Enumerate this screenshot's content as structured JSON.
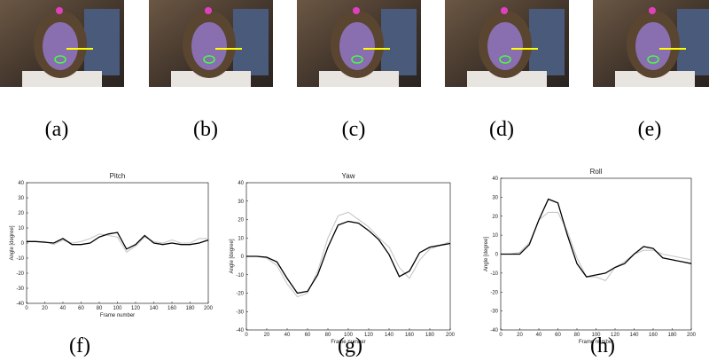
{
  "photo_labels": [
    "(a)",
    "(b)",
    "(c)",
    "(d)",
    "(e)"
  ],
  "chart_labels": [
    "(f)",
    "(g)",
    "(h)"
  ],
  "chart_data": [
    {
      "type": "line",
      "title": "Pitch",
      "xlabel": "Frame number",
      "ylabel": "Angle [degree]",
      "xlim": [
        0,
        200
      ],
      "ylim": [
        -40,
        40
      ],
      "xticks": [
        0,
        20,
        40,
        60,
        80,
        100,
        120,
        140,
        160,
        180,
        200
      ],
      "yticks": [
        -40,
        -30,
        -20,
        -10,
        0,
        10,
        20,
        30,
        40
      ],
      "x": [
        0,
        10,
        20,
        30,
        40,
        50,
        60,
        70,
        80,
        90,
        100,
        110,
        120,
        130,
        140,
        150,
        160,
        170,
        180,
        190,
        200
      ],
      "series": [
        {
          "color": "#c8c8c8",
          "values": [
            1,
            1,
            1,
            -1,
            2,
            0,
            1,
            3,
            6,
            5,
            4,
            -6,
            -2,
            4,
            1,
            0,
            2,
            0,
            0,
            3,
            3
          ]
        },
        {
          "color": "#000000",
          "values": [
            1,
            1,
            0.5,
            0,
            3,
            -1,
            -1,
            0,
            4,
            6,
            7,
            -4,
            -1,
            5,
            0,
            -1,
            0,
            -1,
            -1,
            0,
            2
          ]
        }
      ]
    },
    {
      "type": "line",
      "title": "Yaw",
      "xlabel": "Frame number",
      "ylabel": "Angle [degree]",
      "xlim": [
        0,
        200
      ],
      "ylim": [
        -40,
        40
      ],
      "xticks": [
        0,
        20,
        40,
        60,
        80,
        100,
        120,
        140,
        160,
        180,
        200
      ],
      "yticks": [
        -40,
        -30,
        -20,
        -10,
        0,
        10,
        20,
        30,
        40
      ],
      "x": [
        0,
        10,
        20,
        30,
        40,
        50,
        60,
        70,
        80,
        90,
        100,
        110,
        120,
        130,
        140,
        150,
        160,
        170,
        180,
        190,
        200
      ],
      "series": [
        {
          "color": "#c8c8c8",
          "values": [
            0,
            0,
            -1,
            -5,
            -15,
            -22,
            -20,
            -8,
            10,
            22,
            24,
            20,
            16,
            10,
            5,
            -6,
            -12,
            -2,
            4,
            6,
            8
          ]
        },
        {
          "color": "#000000",
          "values": [
            0,
            0,
            -0.5,
            -3,
            -12,
            -20,
            -19,
            -10,
            5,
            17,
            19,
            18,
            14,
            9,
            1,
            -11,
            -8,
            2,
            5,
            6,
            7
          ]
        }
      ]
    },
    {
      "type": "line",
      "title": "Roll",
      "xlabel": "Frame number",
      "ylabel": "Angle [degree]",
      "xlim": [
        0,
        200
      ],
      "ylim": [
        -40,
        40
      ],
      "xticks": [
        0,
        20,
        40,
        60,
        80,
        100,
        120,
        140,
        160,
        180,
        200
      ],
      "yticks": [
        -40,
        -30,
        -20,
        -10,
        0,
        10,
        20,
        30,
        40
      ],
      "x": [
        0,
        10,
        20,
        30,
        40,
        50,
        60,
        70,
        80,
        90,
        100,
        110,
        120,
        130,
        140,
        150,
        160,
        170,
        180,
        190,
        200
      ],
      "series": [
        {
          "color": "#c8c8c8",
          "values": [
            0,
            0,
            1,
            6,
            18,
            22,
            22,
            12,
            -2,
            -12,
            -12,
            -14,
            -7,
            -4,
            0,
            2,
            2,
            0,
            -1,
            -2,
            -3
          ]
        },
        {
          "color": "#000000",
          "values": [
            0,
            0,
            0,
            5,
            18,
            29,
            27,
            10,
            -5,
            -12,
            -11,
            -10,
            -7,
            -5,
            0,
            4,
            3,
            -2,
            -3,
            -4,
            -5
          ]
        }
      ]
    }
  ]
}
